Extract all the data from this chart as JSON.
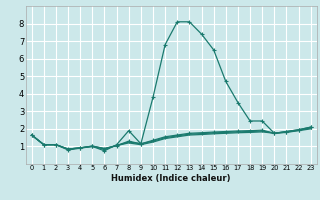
{
  "xlabel": "Humidex (Indice chaleur)",
  "xlim": [
    -0.5,
    23.5
  ],
  "ylim": [
    0,
    9
  ],
  "bg_color": "#cce8ea",
  "grid_color": "#ffffff",
  "line_color": "#1a7a6e",
  "xticks": [
    0,
    1,
    2,
    3,
    4,
    5,
    6,
    7,
    8,
    9,
    10,
    11,
    12,
    13,
    14,
    15,
    16,
    17,
    18,
    19,
    20,
    21,
    22,
    23
  ],
  "yticks": [
    1,
    2,
    3,
    4,
    5,
    6,
    7,
    8
  ],
  "line1_x": [
    0,
    1,
    2,
    3,
    4,
    5,
    6,
    7,
    8,
    9,
    10,
    11,
    12,
    13,
    14,
    15,
    16,
    17,
    18,
    19,
    20,
    21,
    22,
    23
  ],
  "line1_y": [
    1.65,
    1.1,
    1.1,
    0.8,
    0.9,
    1.0,
    0.75,
    1.1,
    1.9,
    1.15,
    3.8,
    6.8,
    8.1,
    8.1,
    7.4,
    6.5,
    4.7,
    3.5,
    2.45,
    2.45,
    1.75,
    1.85,
    1.95,
    2.1
  ],
  "line2_x": [
    0,
    1,
    2,
    3,
    4,
    5,
    6,
    7,
    8,
    9,
    10,
    11,
    12,
    13,
    14,
    15,
    16,
    17,
    18,
    19,
    20,
    21,
    22,
    23
  ],
  "line2_y": [
    1.65,
    1.1,
    1.1,
    0.85,
    0.92,
    1.0,
    0.85,
    1.05,
    1.3,
    1.15,
    1.35,
    1.55,
    1.65,
    1.75,
    1.78,
    1.82,
    1.85,
    1.88,
    1.9,
    1.93,
    1.75,
    1.85,
    1.95,
    2.1
  ],
  "line3_x": [
    0,
    1,
    2,
    3,
    4,
    5,
    6,
    7,
    8,
    9,
    10,
    11,
    12,
    13,
    14,
    15,
    16,
    17,
    18,
    19,
    20,
    21,
    22,
    23
  ],
  "line3_y": [
    1.65,
    1.1,
    1.1,
    0.85,
    0.92,
    1.02,
    0.88,
    1.05,
    1.25,
    1.15,
    1.3,
    1.5,
    1.6,
    1.7,
    1.73,
    1.77,
    1.8,
    1.83,
    1.85,
    1.88,
    1.75,
    1.82,
    1.92,
    2.05
  ],
  "line4_x": [
    0,
    1,
    2,
    3,
    4,
    5,
    6,
    7,
    8,
    9,
    10,
    11,
    12,
    13,
    14,
    15,
    16,
    17,
    18,
    19,
    20,
    21,
    22,
    23
  ],
  "line4_y": [
    1.65,
    1.1,
    1.1,
    0.85,
    0.92,
    1.02,
    0.88,
    1.05,
    1.2,
    1.1,
    1.25,
    1.45,
    1.55,
    1.65,
    1.68,
    1.72,
    1.75,
    1.78,
    1.8,
    1.83,
    1.75,
    1.8,
    1.9,
    2.0
  ],
  "xlabel_fontsize": 6.0,
  "tick_fontsize_x": 4.8,
  "tick_fontsize_y": 6.0
}
